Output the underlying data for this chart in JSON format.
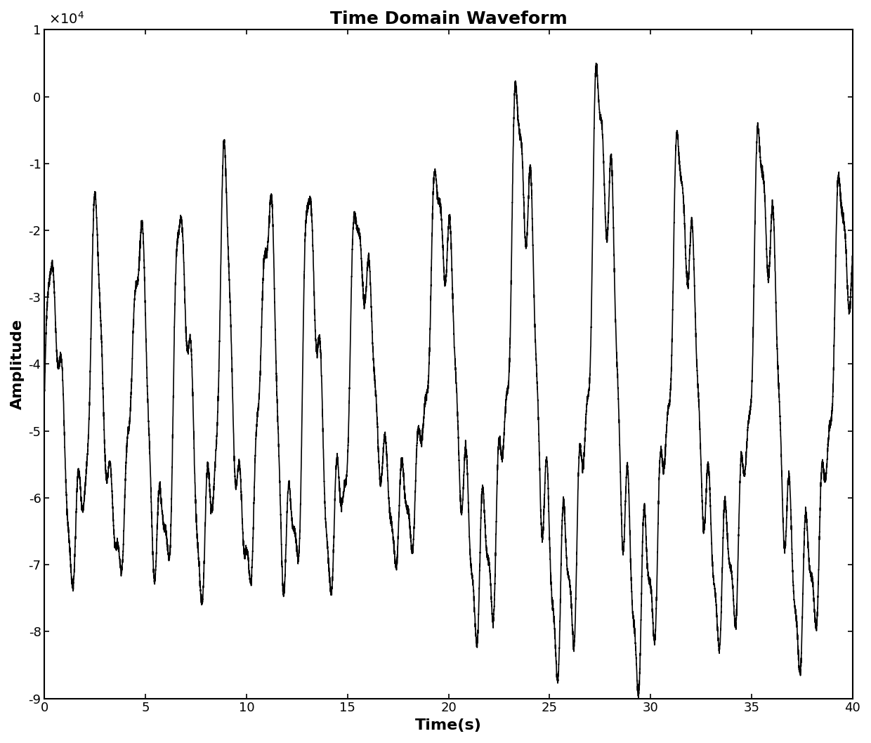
{
  "title": "Time Domain Waveform",
  "xlabel": "Time(s)",
  "ylabel": "Amplitude",
  "xlim": [
    0,
    40
  ],
  "ylim": [
    -9,
    1
  ],
  "yticks": [
    -9,
    -8,
    -7,
    -6,
    -5,
    -4,
    -3,
    -2,
    -1,
    0,
    1
  ],
  "xticks": [
    0,
    5,
    10,
    15,
    20,
    25,
    30,
    35,
    40
  ],
  "line_color": "#000000",
  "line_width": 1.2,
  "bg_color": "#ffffff",
  "title_fontsize": 18,
  "label_fontsize": 16,
  "tick_fontsize": 13,
  "title_fontweight": "bold"
}
